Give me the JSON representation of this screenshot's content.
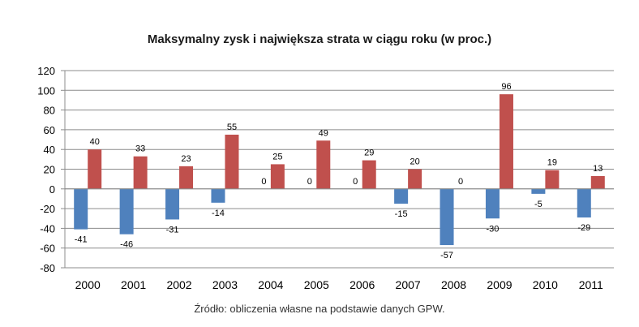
{
  "chart_data": {
    "type": "bar",
    "title": "Maksymalny zysk i największa strata w ciągu roku (w proc.)",
    "source": "Źródło: obliczenia własne na podstawie danych GPW.",
    "categories": [
      "2000",
      "2001",
      "2002",
      "2003",
      "2004",
      "2005",
      "2006",
      "2007",
      "2008",
      "2009",
      "2010",
      "2011"
    ],
    "series": [
      {
        "values": [
          -41,
          -46,
          -31,
          -14,
          0,
          0,
          0,
          -15,
          -57,
          -30,
          -5,
          -29
        ],
        "color": "#4f81bd",
        "labels": [
          "-41",
          "-46",
          "-31",
          "-14",
          "0",
          "0",
          "0",
          "-15",
          "-57",
          "-30",
          "-5",
          "-29"
        ]
      },
      {
        "values": [
          40,
          33,
          23,
          55,
          25,
          49,
          29,
          20,
          0,
          96,
          19,
          13
        ],
        "color": "#c0504d",
        "labels": [
          "40",
          "33",
          "23",
          "55",
          "25",
          "49",
          "29",
          "20",
          "0",
          "96",
          "19",
          "13"
        ]
      }
    ],
    "ylim": [
      -80,
      120
    ],
    "yticks": [
      "-80",
      "-60",
      "-40",
      "-20",
      "0",
      "20",
      "40",
      "60",
      "80",
      "100",
      "120"
    ],
    "grid": true,
    "legend": "none"
  }
}
